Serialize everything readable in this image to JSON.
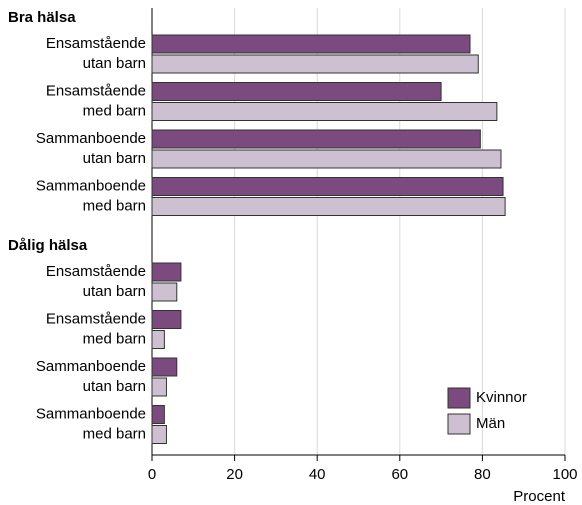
{
  "chart_data": {
    "type": "bar",
    "orientation": "horizontal",
    "groups": [
      {
        "title": "Bra hälsa",
        "categories": [
          [
            "Ensamstående",
            "utan barn"
          ],
          [
            "Ensamstående",
            "med barn"
          ],
          [
            "Sammanboende",
            "utan barn"
          ],
          [
            "Sammanboende",
            "med barn"
          ]
        ]
      },
      {
        "title": "Dålig hälsa",
        "categories": [
          [
            "Ensamstående",
            "utan barn"
          ],
          [
            "Ensamstående",
            "med barn"
          ],
          [
            "Sammanboende",
            "utan barn"
          ],
          [
            "Sammanboende",
            "med barn"
          ]
        ]
      }
    ],
    "series": [
      {
        "name": "Kvinnor",
        "color": "#7b4a7e",
        "values": [
          77,
          70,
          79.5,
          85,
          7,
          7,
          6,
          3
        ]
      },
      {
        "name": "Män",
        "color": "#cdc0d0",
        "values": [
          79,
          83.5,
          84.5,
          85.5,
          6,
          3,
          3.5,
          3.5
        ]
      }
    ],
    "xlabel": "Procent",
    "xlim": [
      0,
      100
    ],
    "xticks": [
      0,
      20,
      40,
      60,
      80,
      100
    ],
    "grid": true,
    "legend": "lower right"
  }
}
